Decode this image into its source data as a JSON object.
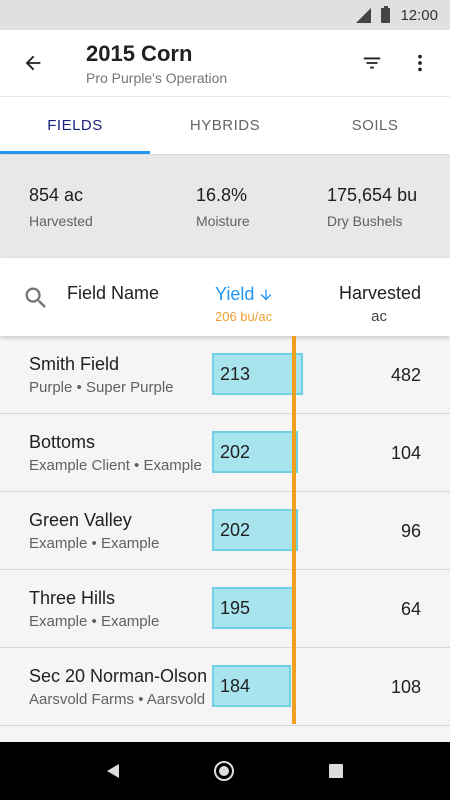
{
  "status_bar": {
    "time": "12:00"
  },
  "app_bar": {
    "title": "2015 Corn",
    "subtitle": "Pro Purple's Operation",
    "icons": {
      "back": "arrow-back-icon",
      "filter": "filter-icon",
      "more": "more-vert-icon"
    }
  },
  "tabs": [
    {
      "label": "FIELDS",
      "active": true
    },
    {
      "label": "HYBRIDS",
      "active": false
    },
    {
      "label": "SOILS",
      "active": false
    }
  ],
  "summary": [
    {
      "value": "854 ac",
      "label": "Harvested"
    },
    {
      "value": "16.8%",
      "label": "Moisture"
    },
    {
      "value": "175,654 bu",
      "label": "Dry Bushels"
    }
  ],
  "header": {
    "field_name": "Field Name",
    "yield": "Yield",
    "yield_avg": "206 bu/ac",
    "harvested": "Harvested",
    "harvested_unit": "ac"
  },
  "yield_scale_max": 220,
  "yield_average": 206,
  "fields": [
    {
      "name": "Smith Field",
      "sub": "Purple • Super Purple",
      "yield": 213,
      "harvested": "482"
    },
    {
      "name": "Bottoms",
      "sub": "Example Client • Example",
      "yield": 202,
      "harvested": "104"
    },
    {
      "name": "Green Valley",
      "sub": "Example • Example",
      "yield": 202,
      "harvested": "96"
    },
    {
      "name": "Three Hills",
      "sub": "Example • Example",
      "yield": 195,
      "harvested": "64"
    },
    {
      "name": "Sec 20 Norman-Olson",
      "sub": "Aarsvold Farms • Aarsvold",
      "yield": 184,
      "harvested": "108"
    }
  ],
  "colors": {
    "accent": "#2196f3",
    "average_line": "#f0a020",
    "bar_fill": "#a8e4ee",
    "bar_border": "#6fd1e2"
  }
}
